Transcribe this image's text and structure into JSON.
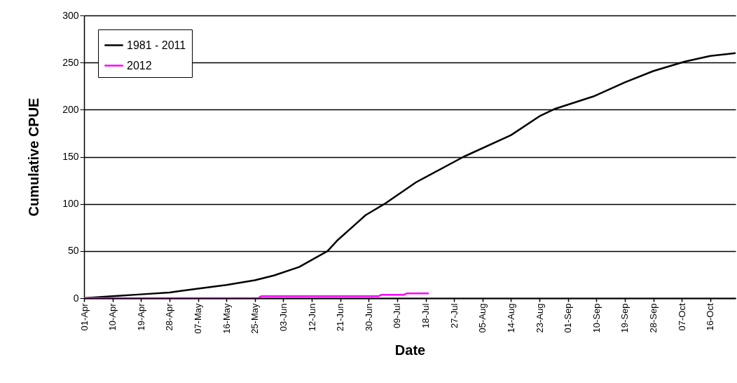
{
  "chart_data": {
    "type": "line",
    "xlabel": "Date",
    "ylabel": "Cumulative CPUE",
    "series": [
      {
        "name": "1981 - 2011",
        "color": "#000000",
        "x": [
          "--04-01",
          "--04-05",
          "--04-10",
          "--04-19",
          "--04-28",
          "--05-07",
          "--05-16",
          "--05-25",
          "--05-31",
          "--06-08",
          "--06-17",
          "--06-20",
          "--06-29",
          "--07-05",
          "--07-15",
          "--07-30",
          "--08-14",
          "--08-23",
          "--08-28",
          "--09-09",
          "--09-19",
          "--09-28",
          "--10-08",
          "--10-16",
          "--10-24"
        ],
        "values": [
          0,
          1,
          2,
          4,
          6,
          10,
          14,
          19,
          24,
          33,
          50,
          61,
          88,
          100,
          123,
          150,
          173,
          193,
          201,
          214,
          229,
          241,
          251,
          257,
          260
        ]
      },
      {
        "name": "2012",
        "color": "#ff00ff",
        "x": [
          "--04-01",
          "--05-26",
          "--05-27",
          "--07-03",
          "--07-04",
          "--07-11",
          "--07-12",
          "--07-19"
        ],
        "values": [
          0,
          0,
          2,
          2,
          3.5,
          3.5,
          5,
          5
        ]
      }
    ],
    "xlim": [
      "--04-01",
      "--10-24"
    ],
    "xticks": [
      {
        "value": "--04-01",
        "label": "01-Apr"
      },
      {
        "value": "--04-10",
        "label": "10-Apr"
      },
      {
        "value": "--04-19",
        "label": "19-Apr"
      },
      {
        "value": "--04-28",
        "label": "28-Apr"
      },
      {
        "value": "--05-07",
        "label": "07-May"
      },
      {
        "value": "--05-16",
        "label": "16-May"
      },
      {
        "value": "--05-25",
        "label": "25-May"
      },
      {
        "value": "--06-03",
        "label": "03-Jun"
      },
      {
        "value": "--06-12",
        "label": "12-Jun"
      },
      {
        "value": "--06-21",
        "label": "21-Jun"
      },
      {
        "value": "--06-30",
        "label": "30-Jun"
      },
      {
        "value": "--07-09",
        "label": "09-Jul"
      },
      {
        "value": "--07-18",
        "label": "18-Jul"
      },
      {
        "value": "--07-27",
        "label": "27-Jul"
      },
      {
        "value": "--08-05",
        "label": "05-Aug"
      },
      {
        "value": "--08-14",
        "label": "14-Aug"
      },
      {
        "value": "--08-23",
        "label": "23-Aug"
      },
      {
        "value": "--09-01",
        "label": "01-Sep"
      },
      {
        "value": "--09-10",
        "label": "10-Sep"
      },
      {
        "value": "--09-19",
        "label": "19-Sep"
      },
      {
        "value": "--09-28",
        "label": "28-Sep"
      },
      {
        "value": "--10-07",
        "label": "07-Oct"
      },
      {
        "value": "--10-16",
        "label": "16-Oct"
      }
    ],
    "ylim": [
      0,
      300
    ],
    "yticks": [
      0,
      50,
      100,
      150,
      200,
      250,
      300
    ],
    "grid": "y",
    "legend": "top left",
    "marker": "none",
    "line_style": "solid"
  }
}
